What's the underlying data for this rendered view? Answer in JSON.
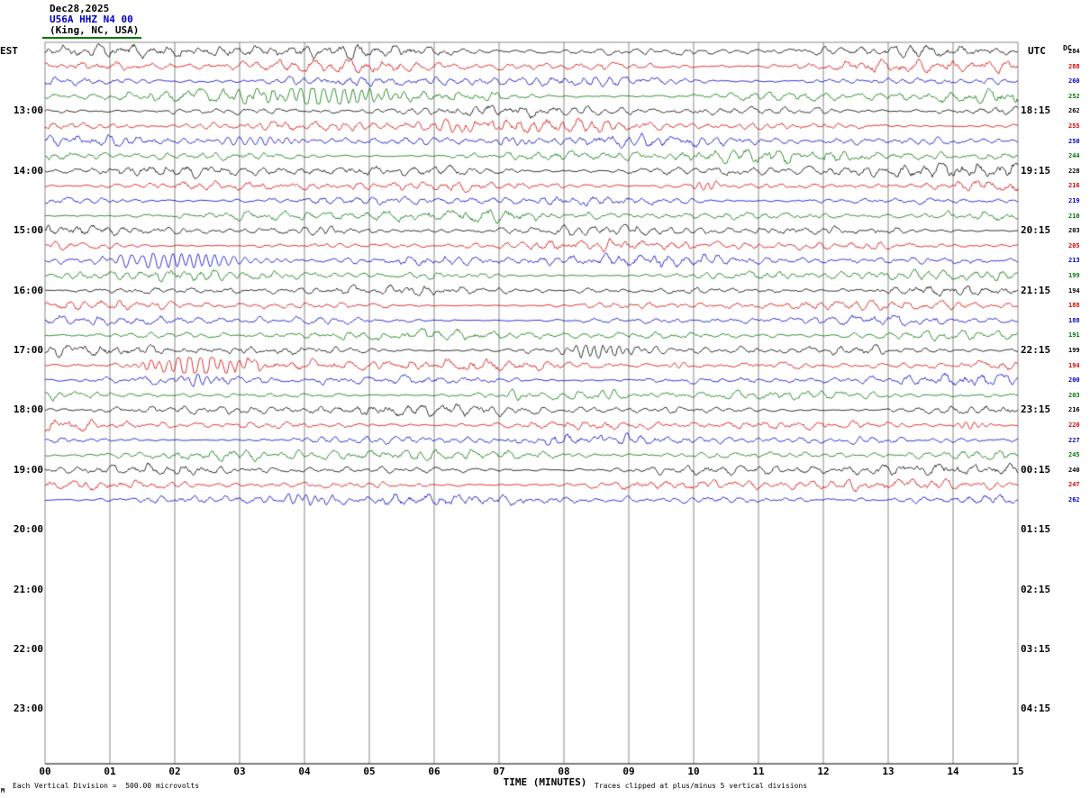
{
  "header": {
    "date": "Dec28,2025",
    "station": "U56A HHZ N4 00",
    "location": "(King, NC, USA)"
  },
  "axes": {
    "left_label": "EST",
    "right_label": "UTC",
    "dc_label": "DC",
    "x_label": "TIME (MINUTES)",
    "x_ticks": [
      "00",
      "01",
      "02",
      "03",
      "04",
      "05",
      "06",
      "07",
      "08",
      "09",
      "10",
      "11",
      "12",
      "13",
      "14",
      "15"
    ],
    "left_times": [
      {
        "label": "13:00",
        "row": 4
      },
      {
        "label": "14:00",
        "row": 8
      },
      {
        "label": "15:00",
        "row": 12
      },
      {
        "label": "16:00",
        "row": 16
      },
      {
        "label": "17:00",
        "row": 20
      },
      {
        "label": "18:00",
        "row": 24
      },
      {
        "label": "19:00",
        "row": 28
      },
      {
        "label": "20:00",
        "row": 32
      },
      {
        "label": "21:00",
        "row": 36
      },
      {
        "label": "22:00",
        "row": 40
      },
      {
        "label": "23:00",
        "row": 44
      }
    ],
    "right_times": [
      {
        "label": "18:15",
        "row": 4
      },
      {
        "label": "19:15",
        "row": 8
      },
      {
        "label": "20:15",
        "row": 12
      },
      {
        "label": "21:15",
        "row": 16
      },
      {
        "label": "22:15",
        "row": 20
      },
      {
        "label": "23:15",
        "row": 24
      },
      {
        "label": "00:15",
        "row": 28
      },
      {
        "label": "01:15",
        "row": 32
      },
      {
        "label": "02:15",
        "row": 36
      },
      {
        "label": "03:15",
        "row": 40
      },
      {
        "label": "04:15",
        "row": 44
      }
    ]
  },
  "footer": {
    "left_note": "Each Vertical Division =  500.00 microvolts",
    "right_note": "Traces clipped at plus/minus 5 vertical divisions",
    "corner_mark": "M"
  },
  "chart_data": {
    "type": "line",
    "title": "Helicorder record U56A HHZ N4 00 (King, NC, USA) Dec28,2025",
    "xlabel": "TIME (MINUTES)",
    "minutes_per_line": 15,
    "n_traces": 31,
    "trace_spacing_minutes": 15,
    "first_trace_start_est": "12:00",
    "color_cycle": [
      "#000000",
      "#dd0000",
      "#0000cc",
      "#007700"
    ],
    "dc_values": [
      284,
      288,
      260,
      252,
      262,
      255,
      250,
      244,
      228,
      216,
      219,
      210,
      203,
      205,
      213,
      199,
      194,
      188,
      188,
      191,
      199,
      194,
      200,
      203,
      216,
      220,
      227,
      245,
      240,
      247,
      262
    ],
    "base_amplitudes": [
      2.2,
      2.6,
      2.3,
      2.5,
      2.2,
      2.3,
      2.3,
      2.2,
      2.4,
      2.0,
      1.9,
      2.1,
      2.0,
      1.9,
      2.0,
      2.0,
      1.9,
      1.7,
      1.7,
      1.7,
      1.9,
      2.0,
      1.9,
      1.8,
      1.9,
      1.9,
      1.8,
      1.8,
      1.9,
      1.8,
      1.9
    ],
    "events": [
      {
        "row": 3,
        "minute": 3.3,
        "width": 0.5,
        "amp": 3.5
      },
      {
        "row": 3,
        "minute": 4.15,
        "width": 0.35,
        "amp": 9.5
      },
      {
        "row": 3,
        "minute": 5.1,
        "width": 0.5,
        "amp": 3.0
      },
      {
        "row": 5,
        "minute": 6.3,
        "width": 0.25,
        "amp": 4.0
      },
      {
        "row": 6,
        "minute": 3.0,
        "width": 0.45,
        "amp": 4.5
      },
      {
        "row": 6,
        "minute": 7.15,
        "width": 0.2,
        "amp": 3.5
      },
      {
        "row": 9,
        "minute": 10.1,
        "width": 0.12,
        "amp": 5.0
      },
      {
        "row": 12,
        "minute": 4.3,
        "width": 0.12,
        "amp": 3.0
      },
      {
        "row": 14,
        "minute": 1.5,
        "width": 0.45,
        "amp": 7.5
      },
      {
        "row": 14,
        "minute": 2.5,
        "width": 0.5,
        "amp": 4.0
      },
      {
        "row": 20,
        "minute": 8.35,
        "width": 0.3,
        "amp": 7.0
      },
      {
        "row": 21,
        "minute": 1.7,
        "width": 0.35,
        "amp": 5.0
      },
      {
        "row": 21,
        "minute": 2.3,
        "width": 0.35,
        "amp": 9.5
      },
      {
        "row": 21,
        "minute": 9.7,
        "width": 0.1,
        "amp": 3.0
      },
      {
        "row": 22,
        "minute": 2.3,
        "width": 0.15,
        "amp": 6.0
      },
      {
        "row": 23,
        "minute": 7.2,
        "width": 0.1,
        "amp": 5.0
      },
      {
        "row": 23,
        "minute": 8.6,
        "width": 0.1,
        "amp": 4.0
      },
      {
        "row": 25,
        "minute": 14.2,
        "width": 0.15,
        "amp": 4.0
      },
      {
        "row": 30,
        "minute": 3.85,
        "width": 0.25,
        "amp": 4.5
      }
    ],
    "scale_note": "Each Vertical Division = 500.00 microvolts",
    "clip_note": "Traces clipped at plus/minus 5 vertical divisions"
  }
}
